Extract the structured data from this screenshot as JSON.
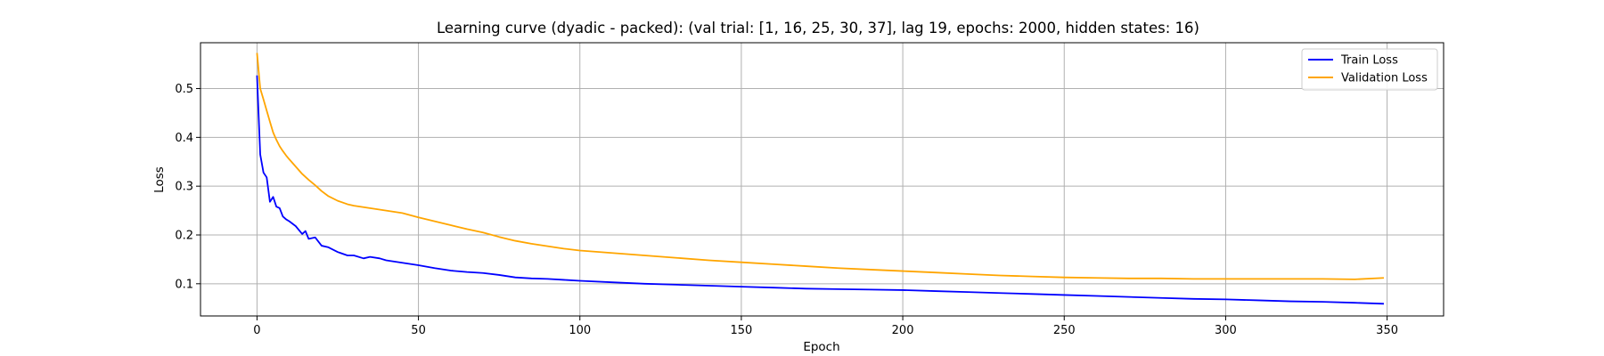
{
  "chart_data": {
    "type": "line",
    "title": "Learning curve (dyadic - packed): (val trial: [1, 16, 25, 30, 37], lag 19, epochs: 2000, hidden states: 16)",
    "xlabel": "Epoch",
    "ylabel": "Loss",
    "xlim": [
      -17.5,
      367.5
    ],
    "ylim": [
      0.034,
      0.594
    ],
    "xticks": [
      0,
      50,
      100,
      150,
      200,
      250,
      300,
      350
    ],
    "yticks": [
      0.1,
      0.2,
      0.3,
      0.4,
      0.5
    ],
    "ytick_labels": [
      "0.1",
      "0.2",
      "0.3",
      "0.4",
      "0.5"
    ],
    "grid": true,
    "legend_position": "top-right",
    "series": [
      {
        "name": "Train Loss",
        "color": "#0000ff",
        "x": [
          0,
          1,
          2,
          3,
          4,
          5,
          6,
          7,
          8,
          9,
          10,
          12,
          14,
          15,
          16,
          18,
          20,
          22,
          25,
          28,
          30,
          33,
          35,
          38,
          40,
          45,
          50,
          55,
          60,
          65,
          70,
          75,
          80,
          85,
          90,
          95,
          100,
          110,
          120,
          130,
          140,
          150,
          160,
          170,
          180,
          190,
          200,
          210,
          220,
          230,
          240,
          250,
          260,
          270,
          280,
          290,
          300,
          310,
          320,
          330,
          340,
          349
        ],
        "y": [
          0.527,
          0.365,
          0.328,
          0.318,
          0.268,
          0.278,
          0.258,
          0.255,
          0.238,
          0.232,
          0.228,
          0.218,
          0.202,
          0.208,
          0.192,
          0.195,
          0.178,
          0.175,
          0.165,
          0.158,
          0.158,
          0.152,
          0.155,
          0.152,
          0.148,
          0.143,
          0.138,
          0.132,
          0.127,
          0.124,
          0.122,
          0.118,
          0.113,
          0.111,
          0.11,
          0.108,
          0.106,
          0.103,
          0.1,
          0.098,
          0.096,
          0.094,
          0.092,
          0.09,
          0.089,
          0.088,
          0.087,
          0.085,
          0.083,
          0.081,
          0.079,
          0.077,
          0.075,
          0.073,
          0.071,
          0.069,
          0.068,
          0.066,
          0.064,
          0.063,
          0.061,
          0.059
        ]
      },
      {
        "name": "Validation Loss",
        "color": "#ffa500",
        "x": [
          0,
          1,
          2,
          3,
          4,
          5,
          6,
          7,
          8,
          9,
          10,
          12,
          14,
          16,
          18,
          20,
          22,
          25,
          28,
          30,
          35,
          40,
          45,
          50,
          55,
          60,
          65,
          70,
          75,
          80,
          85,
          90,
          95,
          100,
          110,
          120,
          130,
          140,
          150,
          160,
          170,
          180,
          190,
          200,
          210,
          220,
          230,
          240,
          250,
          260,
          270,
          280,
          290,
          300,
          310,
          320,
          330,
          340,
          349
        ],
        "y": [
          0.573,
          0.5,
          0.478,
          0.455,
          0.432,
          0.41,
          0.395,
          0.382,
          0.372,
          0.363,
          0.355,
          0.34,
          0.325,
          0.313,
          0.302,
          0.29,
          0.28,
          0.27,
          0.263,
          0.26,
          0.255,
          0.25,
          0.245,
          0.236,
          0.228,
          0.22,
          0.212,
          0.205,
          0.196,
          0.188,
          0.182,
          0.177,
          0.172,
          0.168,
          0.163,
          0.158,
          0.153,
          0.148,
          0.144,
          0.14,
          0.136,
          0.132,
          0.129,
          0.126,
          0.123,
          0.12,
          0.117,
          0.115,
          0.113,
          0.112,
          0.111,
          0.111,
          0.11,
          0.11,
          0.11,
          0.11,
          0.11,
          0.109,
          0.112
        ]
      }
    ]
  }
}
